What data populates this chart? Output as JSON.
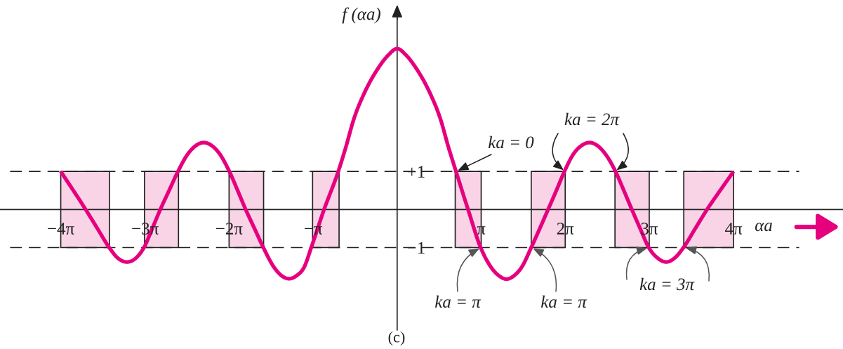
{
  "chart_data": {
    "type": "line",
    "xlabel": "αa",
    "ylabel": "f (αa)",
    "x": [
      -12.57,
      -12.1,
      -11.64,
      -11.2,
      -10.76,
      -10.45,
      -10.07,
      -9.75,
      -9.46,
      -9.15,
      -8.85,
      -8.52,
      -8.19,
      -7.84,
      -7.5,
      -7.23,
      -6.95,
      -6.62,
      -6.27,
      -5.96,
      -5.66,
      -5.33,
      -5.0,
      -4.61,
      -4.32,
      -4.04,
      -3.76,
      -3.47,
      -3.21,
      -2.73,
      -2.2,
      -1.9,
      -1.64,
      -1.2,
      -0.76,
      -0.33,
      0,
      0.33,
      0.76,
      1.2,
      1.64,
      1.9,
      2.2,
      2.65,
      3.12,
      3.5,
      3.8,
      4.09,
      4.37,
      4.66,
      5.01,
      5.33,
      5.64,
      5.95,
      6.25,
      6.58,
      6.91,
      7.19,
      7.46,
      7.8,
      8.16,
      8.47,
      8.77,
      9.08,
      9.4,
      9.72,
      10.06,
      10.38,
      10.7,
      11.14,
      11.58,
      12.07,
      12.57
    ],
    "series": [
      {
        "color": "#e6007e",
        "values": [
          1.0,
          0.5,
          0,
          -0.5,
          -1.0,
          -1.27,
          -1.38,
          -1.27,
          -1.0,
          -0.5,
          0,
          0.5,
          1.0,
          1.44,
          1.69,
          1.76,
          1.69,
          1.45,
          1.0,
          0.5,
          0,
          -0.5,
          -1.0,
          -1.51,
          -1.74,
          -1.82,
          -1.74,
          -1.51,
          -1.0,
          0,
          1.0,
          1.68,
          2.33,
          3.1,
          3.66,
          4.06,
          4.23,
          4.06,
          3.66,
          3.1,
          2.33,
          1.68,
          1.0,
          0,
          -1.0,
          -1.51,
          -1.74,
          -1.83,
          -1.74,
          -1.51,
          -1.0,
          -0.5,
          0,
          0.5,
          1.0,
          1.45,
          1.69,
          1.76,
          1.69,
          1.44,
          1.0,
          0.5,
          0,
          -0.5,
          -1.0,
          -1.27,
          -1.38,
          -1.27,
          -1.0,
          -0.5,
          0,
          0.5,
          1.0
        ]
      }
    ],
    "xlim": [
      -14.84,
      16.66
    ],
    "ylim": [
      -3.17,
      5.25
    ],
    "xticks": [
      {
        "value": -12.57,
        "label": "−4π"
      },
      {
        "value": -9.42,
        "label": "−3π"
      },
      {
        "value": -6.28,
        "label": "−2π"
      },
      {
        "value": -3.14,
        "label": "−π"
      },
      {
        "value": 3.14,
        "label": "π"
      },
      {
        "value": 6.28,
        "label": "2π"
      },
      {
        "value": 9.42,
        "label": "3π"
      },
      {
        "value": 12.57,
        "label": "4π"
      }
    ],
    "yticks": [
      {
        "value": 1,
        "label": "+1"
      },
      {
        "value": -1,
        "label": "−1"
      }
    ],
    "ref_lines": [
      {
        "axis": "y",
        "value": 1,
        "color": "#222222",
        "line_style": "dashed"
      },
      {
        "axis": "y",
        "value": -1,
        "color": "#222222",
        "line_style": "dashed"
      }
    ],
    "bands": [
      {
        "axis": "x",
        "from": -12.57,
        "to": -10.75,
        "color": "#f9d3e6"
      },
      {
        "axis": "x",
        "from": -9.44,
        "to": -8.17,
        "color": "#f9d3e6"
      },
      {
        "axis": "x",
        "from": -6.28,
        "to": -4.99,
        "color": "#f9d3e6"
      },
      {
        "axis": "x",
        "from": -3.16,
        "to": -2.17,
        "color": "#f9d3e6"
      },
      {
        "axis": "x",
        "from": 2.17,
        "to": 3.14,
        "color": "#f9d3e6"
      },
      {
        "axis": "x",
        "from": 5.01,
        "to": 6.28,
        "color": "#f9d3e6"
      },
      {
        "axis": "x",
        "from": 8.14,
        "to": 9.42,
        "color": "#f9d3e6"
      },
      {
        "axis": "x",
        "from": 10.71,
        "to": 12.57,
        "color": "#f9d3e6"
      }
    ],
    "annotations": [
      {
        "text": "ka = 0",
        "x": 2.2,
        "y": 1
      },
      {
        "text": "ka = 2π",
        "x": 6.28,
        "y": 1
      },
      {
        "text": "ka = π",
        "x": 3.14,
        "y": -1
      },
      {
        "text": "ka = π",
        "x": 5.01,
        "y": -1
      },
      {
        "text": "ka = 3π",
        "x": 9.42,
        "y": -1
      },
      "(c)"
    ],
    "line_style": "solid"
  }
}
